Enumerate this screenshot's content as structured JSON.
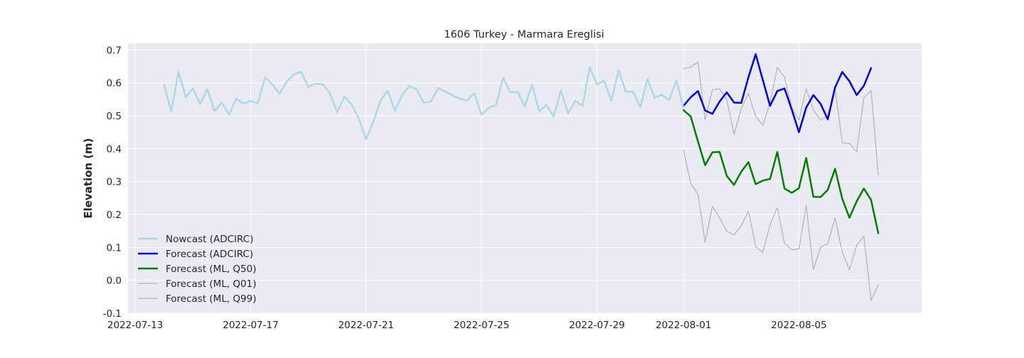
{
  "chart_data": {
    "type": "line",
    "title": "1606 Turkey - Marmara Ereglisi",
    "xlabel": "",
    "ylabel": "Elevation (m)",
    "xlim": [
      "2022-07-12T18:00",
      "2022-08-09T06:00"
    ],
    "ylim": [
      -0.1,
      0.72
    ],
    "x_ticks": [
      "2022-07-13",
      "2022-07-17",
      "2022-07-21",
      "2022-07-25",
      "2022-07-29",
      "2022-08-01",
      "2022-08-05"
    ],
    "y_ticks": [
      "-0.1",
      "0.0",
      "0.1",
      "0.2",
      "0.3",
      "0.4",
      "0.5",
      "0.6",
      "0.7"
    ],
    "y_tick_values": [
      -0.1,
      0.0,
      0.1,
      0.2,
      0.3,
      0.4,
      0.5,
      0.6,
      0.7
    ],
    "grid": true,
    "legend_position": "lower-left",
    "series": [
      {
        "name": "Nowcast (ADCIRC)",
        "color": "#add8e6",
        "width": 2.5,
        "x_start": "2022-07-14T00:00",
        "step_hours": 6,
        "values": [
          0.595,
          0.513,
          0.634,
          0.557,
          0.583,
          0.535,
          0.581,
          0.515,
          0.54,
          0.503,
          0.552,
          0.537,
          0.545,
          0.538,
          0.617,
          0.595,
          0.567,
          0.604,
          0.626,
          0.633,
          0.588,
          0.597,
          0.596,
          0.568,
          0.511,
          0.558,
          0.534,
          0.491,
          0.429,
          0.481,
          0.546,
          0.576,
          0.515,
          0.563,
          0.59,
          0.58,
          0.539,
          0.544,
          0.584,
          0.573,
          0.562,
          0.552,
          0.546,
          0.569,
          0.503,
          0.524,
          0.533,
          0.616,
          0.571,
          0.573,
          0.528,
          0.594,
          0.513,
          0.533,
          0.497,
          0.577,
          0.507,
          0.545,
          0.53,
          0.648,
          0.595,
          0.606,
          0.545,
          0.639,
          0.573,
          0.573,
          0.526,
          0.612,
          0.554,
          0.564,
          0.547,
          0.608,
          0.523
        ]
      },
      {
        "name": "Forecast (ADCIRC)",
        "color": "#0000ee",
        "width": 2.5,
        "x_start": "2022-08-01T00:00",
        "step_hours": 6,
        "values": [
          0.53,
          0.556,
          0.575,
          0.516,
          0.506,
          0.543,
          0.571,
          0.54,
          0.539,
          0.617,
          0.687,
          0.608,
          0.53,
          0.575,
          0.583,
          0.519,
          0.45,
          0.525,
          0.563,
          0.536,
          0.489,
          0.586,
          0.633,
          0.605,
          0.563,
          0.591,
          0.645
        ]
      },
      {
        "name": "Forecast (ML, Q50)",
        "color": "#008000",
        "width": 2.5,
        "x_start": "2022-08-01T00:00",
        "step_hours": 6,
        "values": [
          0.517,
          0.498,
          0.422,
          0.35,
          0.389,
          0.39,
          0.317,
          0.29,
          0.33,
          0.359,
          0.292,
          0.303,
          0.308,
          0.39,
          0.279,
          0.266,
          0.28,
          0.372,
          0.254,
          0.253,
          0.275,
          0.339,
          0.248,
          0.19,
          0.24,
          0.279,
          0.244,
          0.143
        ]
      },
      {
        "name": "Forecast (ML, Q01)",
        "color": "#b3b3b3",
        "width": 1.2,
        "x_start": "2022-08-01T00:00",
        "step_hours": 6,
        "values": [
          0.395,
          0.295,
          0.261,
          0.116,
          0.225,
          0.19,
          0.149,
          0.138,
          0.166,
          0.21,
          0.102,
          0.085,
          0.169,
          0.221,
          0.113,
          0.093,
          0.096,
          0.228,
          0.033,
          0.101,
          0.112,
          0.19,
          0.086,
          0.032,
          0.106,
          0.134,
          -0.062,
          -0.012
        ]
      },
      {
        "name": "Forecast (ML, Q99)",
        "color": "#b3b3b3",
        "width": 1.2,
        "x_start": "2022-08-01T00:00",
        "step_hours": 6,
        "values": [
          0.643,
          0.648,
          0.663,
          0.487,
          0.579,
          0.582,
          0.549,
          0.443,
          0.521,
          0.568,
          0.498,
          0.471,
          0.54,
          0.646,
          0.617,
          0.524,
          0.488,
          0.581,
          0.518,
          0.487,
          0.5,
          0.584,
          0.418,
          0.416,
          0.391,
          0.555,
          0.577,
          0.32
        ]
      }
    ]
  }
}
